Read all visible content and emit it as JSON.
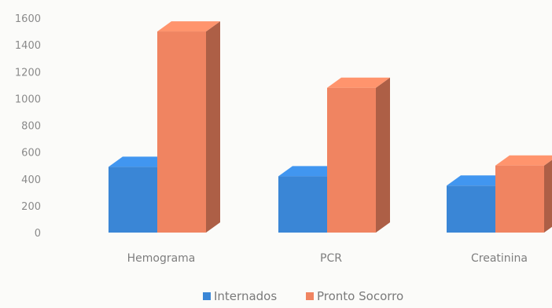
{
  "chart_data": {
    "type": "bar",
    "categories": [
      "Hemograma",
      "PCR",
      "Creatinina"
    ],
    "series": [
      {
        "name": "Internados",
        "values": [
          490,
          420,
          350
        ],
        "color": "#3a86d6"
      },
      {
        "name": "Pronto Socorro",
        "values": [
          1500,
          1080,
          500
        ],
        "color": "#f08461"
      }
    ],
    "yticks": [
      "0",
      "200",
      "400",
      "600",
      "800",
      "1000",
      "1200",
      "1400",
      "1600"
    ],
    "ylim": [
      0,
      1600
    ],
    "grid": false,
    "legend_position": "bottom",
    "style": "3d"
  }
}
